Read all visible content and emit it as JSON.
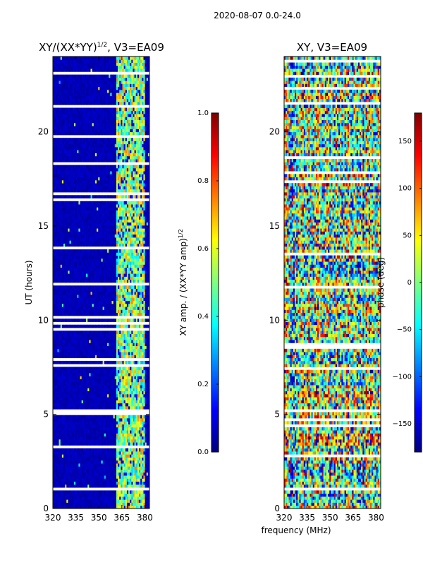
{
  "suptitle": "2020-08-07 0.0-24.0",
  "xlabel": "frequency (MHz)",
  "colors": {
    "jet": [
      "#00007f",
      "#0000ff",
      "#007fff",
      "#00ffff",
      "#7fff7f",
      "#ffff00",
      "#ff7f00",
      "#ff0000",
      "#7f0000"
    ],
    "gap": "#ffffff"
  },
  "chart_data": [
    {
      "type": "heatmap",
      "title": "XY/(XX*YY)",
      "title_exponent": "1/2",
      "title_suffix": ", V3=EA09",
      "xlabel": "",
      "ylabel": "UT (hours)",
      "xlim": [
        320,
        383
      ],
      "ylim": [
        0,
        24
      ],
      "xticks": [
        320,
        335,
        350,
        365,
        380
      ],
      "yticks": [
        0,
        5,
        10,
        15,
        20
      ],
      "colorbar": {
        "label": "XY amp. / (XX*YY amp)",
        "label_exponent": "1/2",
        "range": [
          0.0,
          1.0
        ],
        "ticks": [
          0.0,
          0.2,
          0.4,
          0.6,
          0.8,
          1.0
        ],
        "tick_labels": [
          "0.0",
          "0.2",
          "0.4",
          "0.6",
          "0.8",
          "1.0"
        ]
      },
      "description": "mostly near 0 below 360 MHz; bright 0.3-0.8 band between about 360 and 380 MHz"
    },
    {
      "type": "heatmap",
      "title": "XY, V3=EA09",
      "xlabel": "",
      "ylabel": "",
      "xlim": [
        320,
        383
      ],
      "ylim": [
        0,
        24
      ],
      "xticks": [
        320,
        335,
        350,
        365,
        380
      ],
      "yticks": [
        0,
        5,
        10,
        15,
        20
      ],
      "colorbar": {
        "label": "phase (deg)",
        "range": [
          -180,
          180
        ],
        "ticks": [
          -150,
          -100,
          -50,
          0,
          50,
          100,
          150
        ],
        "tick_labels": [
          "−150",
          "−100",
          "−50",
          "0",
          "50",
          "100",
          "150"
        ]
      },
      "description": "noisy phase spanning full range with horizontal flagged gaps"
    }
  ]
}
